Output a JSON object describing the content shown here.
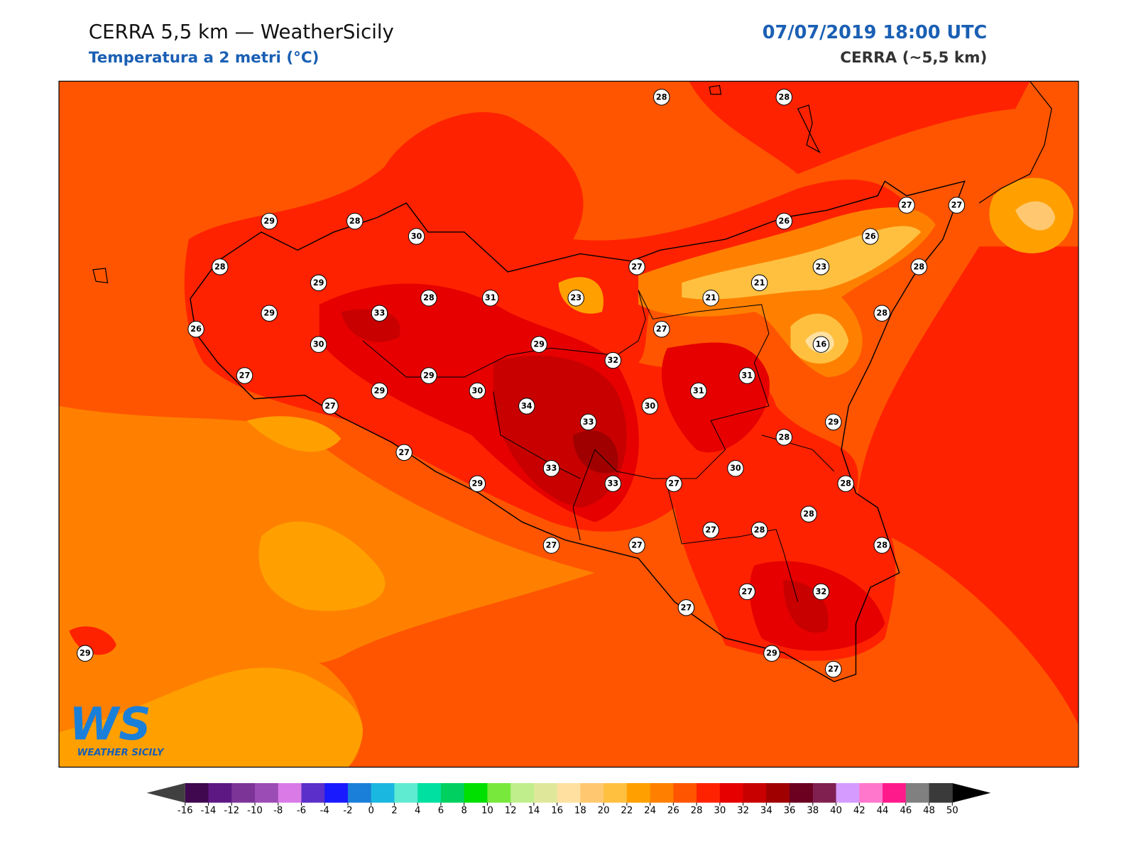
{
  "header": {
    "title": "CERRA 5,5 km — WeatherSicily",
    "subtitle": "Temperatura a 2 metri (°C)",
    "date": "07/07/2019 18:00 UTC",
    "source": "CERRA (~5,5 km)"
  },
  "logo": {
    "mark": "WS",
    "name": "WEATHER SICILY"
  },
  "stations": [
    28,
    28,
    29,
    28,
    30,
    26,
    27,
    27,
    26,
    28,
    29,
    27,
    23,
    28,
    21,
    29,
    33,
    28,
    31,
    23,
    21,
    28,
    26,
    30,
    29,
    27,
    16,
    32,
    27,
    29,
    29,
    30,
    31,
    31,
    27,
    34,
    33,
    30,
    29,
    28,
    27,
    33,
    33,
    27,
    30,
    29,
    28,
    28,
    27,
    28,
    27,
    27,
    28,
    27,
    27,
    32,
    29,
    29,
    27
  ],
  "colorbar": {
    "ticks": [
      -16,
      -14,
      -12,
      -10,
      -8,
      -6,
      -4,
      -2,
      0,
      2,
      4,
      6,
      8,
      10,
      12,
      14,
      16,
      18,
      20,
      22,
      24,
      26,
      28,
      30,
      32,
      34,
      36,
      38,
      40,
      42,
      44,
      46,
      48,
      50
    ],
    "colors": [
      "#40084f",
      "#5e1883",
      "#7c3497",
      "#9b4cb5",
      "#d97ae6",
      "#5b2fc9",
      "#1a1aff",
      "#1a7fd9",
      "#1ab8e0",
      "#5eebd1",
      "#00e0a0",
      "#00d060",
      "#00e000",
      "#78e83c",
      "#c0ee8c",
      "#dfe89a",
      "#ffe0a0",
      "#ffc870",
      "#ffc040",
      "#ffa000",
      "#ff8000",
      "#ff5500",
      "#ff2200",
      "#e60000",
      "#c80000",
      "#a00000",
      "#6b0020",
      "#7f2050",
      "#d59bff",
      "#ff77cc",
      "#ff1a8c",
      "#808080",
      "#3a3a3a"
    ],
    "under_color": "#404040",
    "over_color": "#000000"
  }
}
